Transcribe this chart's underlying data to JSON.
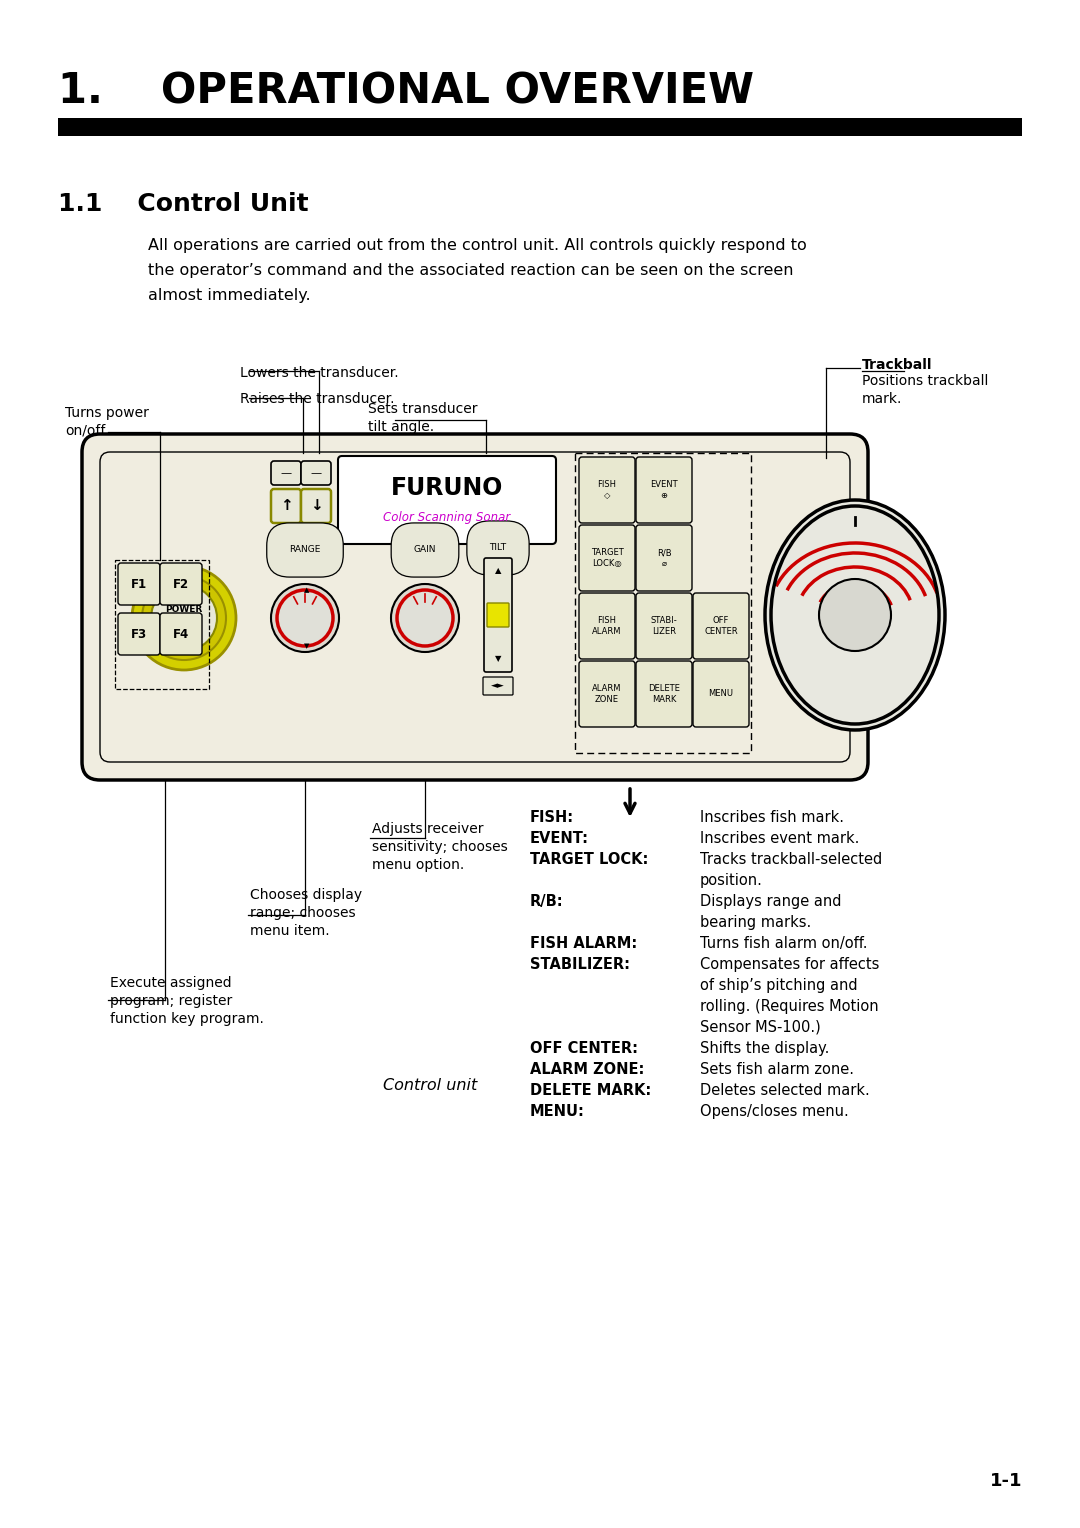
{
  "title": "1.    OPERATIONAL OVERVIEW",
  "section": "1.1    Control Unit",
  "body_line1": "All operations are carried out from the control unit. All controls quickly respond to",
  "body_line2": "the operator’s command and the associated reaction can be seen on the screen",
  "body_line3": "almost immediately.",
  "page_number": "1-1",
  "caption": "Control unit",
  "bg_color": "#ffffff",
  "text_color": "#000000",
  "magenta": "#cc00cc",
  "red_knob": "#cc0000",
  "yellow_ring": "#d4d000",
  "panel_bg": "#f0ede0",
  "btn_bg": "#e8e8d0",
  "desc_pairs": [
    [
      "FISH:",
      "Inscribes fish mark."
    ],
    [
      "EVENT:",
      "Inscribes event mark."
    ],
    [
      "TARGET LOCK:",
      "Tracks trackball-selected"
    ],
    [
      "",
      "position."
    ],
    [
      "R/B:",
      "Displays range and"
    ],
    [
      "",
      "bearing marks."
    ],
    [
      "FISH ALARM:",
      "Turns fish alarm on/off."
    ],
    [
      "STABILIZER:",
      "Compensates for affects"
    ],
    [
      "",
      "of ship’s pitching and"
    ],
    [
      "",
      "rolling. (Requires Motion"
    ],
    [
      "",
      "Sensor MS-100.)"
    ],
    [
      "OFF CENTER:",
      "Shifts the display."
    ],
    [
      "ALARM ZONE:",
      "Sets fish alarm zone."
    ],
    [
      "DELETE MARK:",
      "Deletes selected mark."
    ],
    [
      "MENU:",
      "Opens/closes menu."
    ]
  ]
}
